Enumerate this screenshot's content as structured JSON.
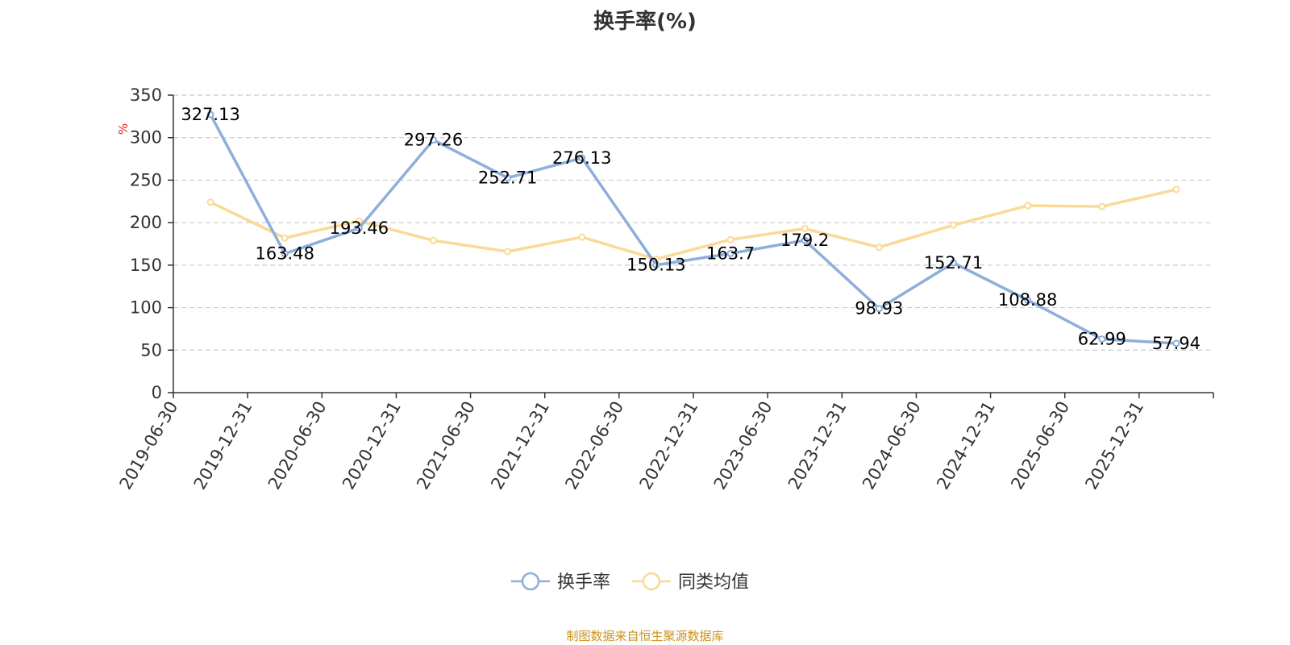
{
  "title": "换手率(%)",
  "source_note": "制图数据来自恒生聚源数据库",
  "colors": {
    "series_a": "#8eaedb",
    "series_b": "#fbd996",
    "source": "#c9941e",
    "ylabel": "#e0201b"
  },
  "chart_data": {
    "type": "line",
    "title": "换手率(%)",
    "ylabel": "%",
    "ylim": [
      0,
      350
    ],
    "yticks": [
      0,
      50,
      100,
      150,
      200,
      250,
      300,
      350
    ],
    "grid": true,
    "legend_position": "bottom",
    "x": [
      "2019-06-30",
      "2019-12-31",
      "2020-06-30",
      "2020-12-31",
      "2021-06-30",
      "2021-12-31",
      "2022-06-30",
      "2022-12-31",
      "2023-06-30",
      "2023-12-31",
      "2024-06-30",
      "2024-12-31",
      "2025-06-30",
      "2025-12-31"
    ],
    "series": [
      {
        "name": "换手率",
        "values": [
          327.13,
          163.48,
          193.46,
          297.26,
          252.71,
          276.13,
          150.13,
          163.7,
          179.2,
          98.93,
          152.71,
          108.88,
          62.99,
          57.94
        ],
        "labels": [
          "327.13",
          "163.48",
          "193.46",
          "297.26",
          "252.71",
          "276.13",
          "150.13",
          "163.7",
          "179.2",
          "98.93",
          "152.71",
          "108.88",
          "62.99",
          "57.94"
        ]
      },
      {
        "name": "同类均值",
        "values": [
          224,
          182,
          202,
          179,
          166,
          183,
          157,
          180,
          193,
          171,
          197,
          220,
          219,
          239
        ]
      }
    ]
  }
}
